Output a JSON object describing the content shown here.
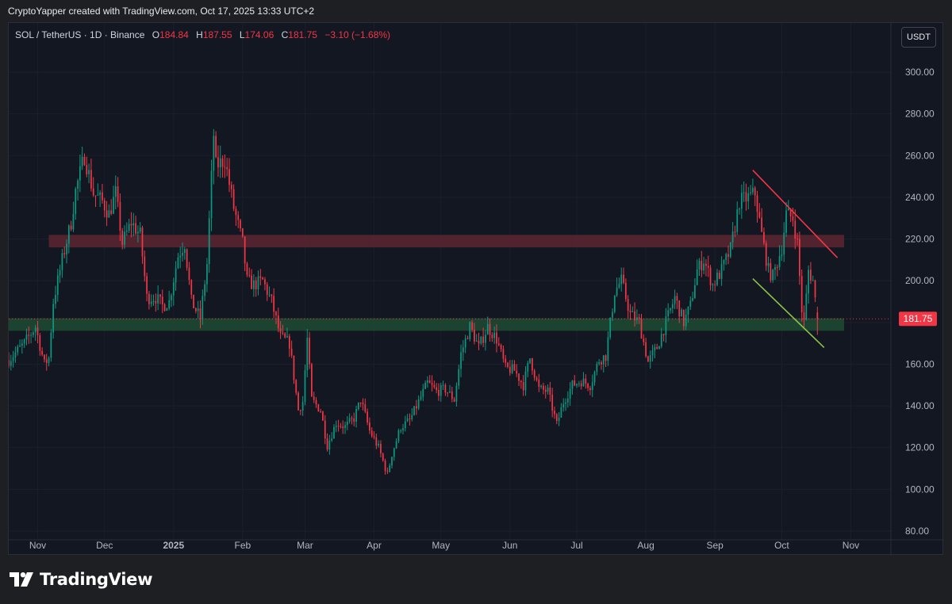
{
  "header": {
    "attribution": "CryptoYapper created with TradingView.com, Oct 17, 2025 13:33 UTC+2"
  },
  "legend": {
    "symbol": "SOL / TetherUS · 1D · Binance",
    "open_label": "O",
    "open": "184.84",
    "high_label": "H",
    "high": "187.55",
    "low_label": "L",
    "low": "174.06",
    "close_label": "C",
    "close": "181.75",
    "change": "−3.10 (−1.68%)"
  },
  "toolbar": {
    "currency": "USDT"
  },
  "footer": {
    "brand": "TradingView"
  },
  "colors": {
    "up": "#089981",
    "down": "#f23645",
    "background": "#131722",
    "resistance_zone": "#5c2630",
    "support_zone": "#1f4a33",
    "trendline_upper": "#f23645",
    "trendline_lower": "#8bc34a"
  },
  "chart_data": {
    "type": "candlestick",
    "y_axis": {
      "ticks": [
        80,
        100,
        120,
        140,
        160,
        180,
        200,
        220,
        240,
        260,
        280,
        300
      ],
      "tick_labels": [
        "80.00",
        "100.00",
        "120.00",
        "140.00",
        "160.00",
        "180.00",
        "200.00",
        "220.00",
        "240.00",
        "260.00",
        "280.00",
        "300.00"
      ],
      "range": [
        80,
        320
      ]
    },
    "x_axis": {
      "range": [
        "2024-10-19",
        "2025-11-19"
      ],
      "ticks": [
        {
          "date": "2024-11-01",
          "label": "Nov"
        },
        {
          "date": "2024-12-01",
          "label": "Dec"
        },
        {
          "date": "2025-01-01",
          "label": "2025"
        },
        {
          "date": "2025-02-01",
          "label": "Feb"
        },
        {
          "date": "2025-03-01",
          "label": "Mar"
        },
        {
          "date": "2025-04-01",
          "label": "Apr"
        },
        {
          "date": "2025-05-01",
          "label": "May"
        },
        {
          "date": "2025-06-01",
          "label": "Jun"
        },
        {
          "date": "2025-07-01",
          "label": "Jul"
        },
        {
          "date": "2025-08-01",
          "label": "Aug"
        },
        {
          "date": "2025-09-01",
          "label": "Sep"
        },
        {
          "date": "2025-10-01",
          "label": "Oct"
        },
        {
          "date": "2025-11-01",
          "label": "Nov"
        }
      ]
    },
    "price_path": [
      [
        "2024-10-19",
        162
      ],
      [
        "2024-10-26",
        170
      ],
      [
        "2024-10-31",
        178
      ],
      [
        "2024-11-04",
        160
      ],
      [
        "2024-11-06",
        163
      ],
      [
        "2024-11-08",
        190
      ],
      [
        "2024-11-12",
        210
      ],
      [
        "2024-11-16",
        228
      ],
      [
        "2024-11-18",
        243
      ],
      [
        "2024-11-22",
        260
      ],
      [
        "2024-11-26",
        242
      ],
      [
        "2024-11-30",
        238
      ],
      [
        "2024-12-03",
        232
      ],
      [
        "2024-12-06",
        242
      ],
      [
        "2024-12-09",
        218
      ],
      [
        "2024-12-13",
        228
      ],
      [
        "2024-12-17",
        222
      ],
      [
        "2024-12-20",
        192
      ],
      [
        "2024-12-24",
        192
      ],
      [
        "2024-12-27",
        188
      ],
      [
        "2024-12-30",
        190
      ],
      [
        "2025-01-03",
        212
      ],
      [
        "2025-01-06",
        218
      ],
      [
        "2025-01-09",
        190
      ],
      [
        "2025-01-13",
        182
      ],
      [
        "2025-01-16",
        208
      ],
      [
        "2025-01-19",
        270
      ],
      [
        "2025-01-20",
        255
      ],
      [
        "2025-01-24",
        258
      ],
      [
        "2025-01-28",
        235
      ],
      [
        "2025-02-01",
        218
      ],
      [
        "2025-02-03",
        200
      ],
      [
        "2025-02-06",
        198
      ],
      [
        "2025-02-10",
        200
      ],
      [
        "2025-02-14",
        190
      ],
      [
        "2025-02-18",
        173
      ],
      [
        "2025-02-22",
        170
      ],
      [
        "2025-02-26",
        138
      ],
      [
        "2025-02-28",
        142
      ],
      [
        "2025-03-02",
        172
      ],
      [
        "2025-03-04",
        143
      ],
      [
        "2025-03-08",
        138
      ],
      [
        "2025-03-11",
        121
      ],
      [
        "2025-03-15",
        132
      ],
      [
        "2025-03-19",
        130
      ],
      [
        "2025-03-23",
        134
      ],
      [
        "2025-03-26",
        143
      ],
      [
        "2025-03-30",
        128
      ],
      [
        "2025-04-03",
        120
      ],
      [
        "2025-04-07",
        107
      ],
      [
        "2025-04-09",
        117
      ],
      [
        "2025-04-13",
        130
      ],
      [
        "2025-04-17",
        133
      ],
      [
        "2025-04-21",
        142
      ],
      [
        "2025-04-25",
        151
      ],
      [
        "2025-04-29",
        147
      ],
      [
        "2025-05-03",
        148
      ],
      [
        "2025-05-07",
        143
      ],
      [
        "2025-05-10",
        165
      ],
      [
        "2025-05-14",
        178
      ],
      [
        "2025-05-18",
        168
      ],
      [
        "2025-05-22",
        178
      ],
      [
        "2025-05-26",
        172
      ],
      [
        "2025-05-30",
        158
      ],
      [
        "2025-06-03",
        157
      ],
      [
        "2025-06-07",
        150
      ],
      [
        "2025-06-10",
        163
      ],
      [
        "2025-06-14",
        148
      ],
      [
        "2025-06-18",
        147
      ],
      [
        "2025-06-22",
        131
      ],
      [
        "2025-06-25",
        142
      ],
      [
        "2025-06-29",
        150
      ],
      [
        "2025-07-03",
        152
      ],
      [
        "2025-07-07",
        150
      ],
      [
        "2025-07-11",
        162
      ],
      [
        "2025-07-14",
        164
      ],
      [
        "2025-07-18",
        195
      ],
      [
        "2025-07-21",
        200
      ],
      [
        "2025-07-25",
        184
      ],
      [
        "2025-07-29",
        180
      ],
      [
        "2025-08-02",
        161
      ],
      [
        "2025-08-06",
        168
      ],
      [
        "2025-08-10",
        180
      ],
      [
        "2025-08-14",
        192
      ],
      [
        "2025-08-18",
        180
      ],
      [
        "2025-08-21",
        188
      ],
      [
        "2025-08-24",
        205
      ],
      [
        "2025-08-27",
        210
      ],
      [
        "2025-08-31",
        198
      ],
      [
        "2025-09-04",
        205
      ],
      [
        "2025-09-08",
        215
      ],
      [
        "2025-09-12",
        238
      ],
      [
        "2025-09-16",
        240
      ],
      [
        "2025-09-19",
        242
      ],
      [
        "2025-09-22",
        222
      ],
      [
        "2025-09-25",
        205
      ],
      [
        "2025-09-27",
        202
      ],
      [
        "2025-10-01",
        216
      ],
      [
        "2025-10-03",
        232
      ],
      [
        "2025-10-06",
        230
      ],
      [
        "2025-10-08",
        218
      ],
      [
        "2025-10-10",
        186
      ],
      [
        "2025-10-11",
        180
      ],
      [
        "2025-10-13",
        205
      ],
      [
        "2025-10-15",
        200
      ],
      [
        "2025-10-17",
        181.75
      ]
    ],
    "zones": [
      {
        "name": "resistance",
        "from": 216,
        "to": 222,
        "start": "2024-11-06",
        "end": "2025-10-29"
      },
      {
        "name": "support",
        "from": 176,
        "to": 182,
        "start": "2024-10-19",
        "end": "2025-10-29"
      }
    ],
    "trendlines": [
      {
        "name": "upper",
        "p1": [
          "2025-09-18",
          253
        ],
        "p2": [
          "2025-10-26",
          211
        ]
      },
      {
        "name": "lower",
        "p1": [
          "2025-09-18",
          201
        ],
        "p2": [
          "2025-10-20",
          168
        ]
      }
    ],
    "last_price": 181.75,
    "last_price_label": "181.75"
  }
}
